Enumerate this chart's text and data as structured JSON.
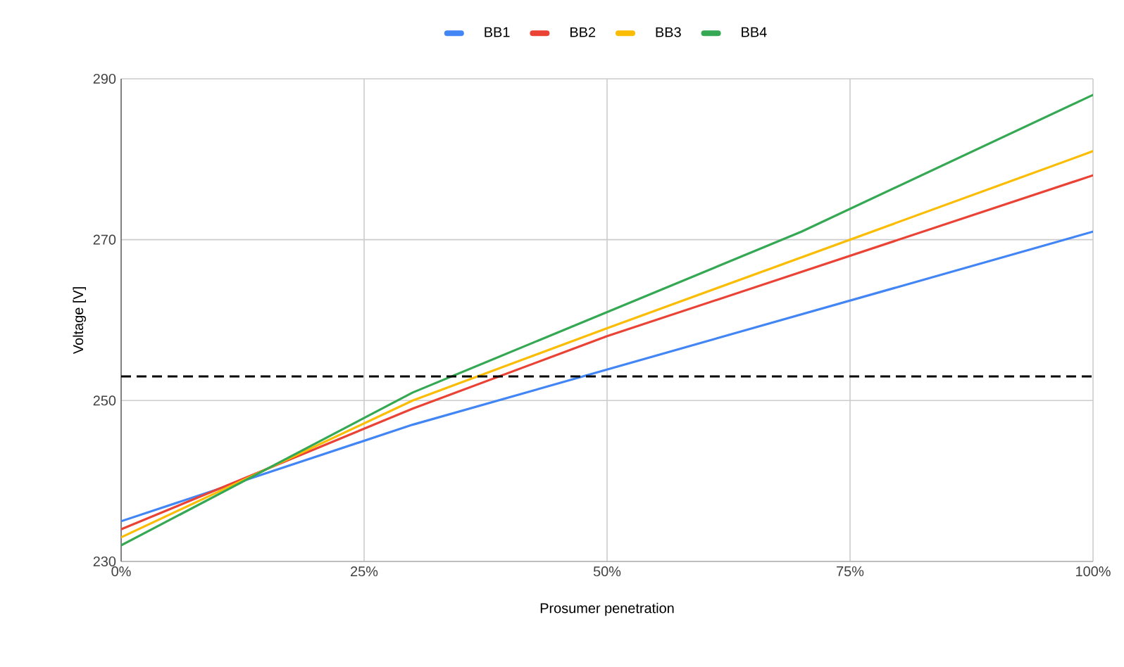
{
  "chart_data": {
    "type": "line",
    "xlabel": "Prosumer penetration",
    "ylabel": "Voltage [V]",
    "xlim": [
      0,
      100
    ],
    "ylim": [
      230,
      290
    ],
    "xticks": [
      {
        "value": 0,
        "label": "0%"
      },
      {
        "value": 25,
        "label": "25%"
      },
      {
        "value": 50,
        "label": "50%"
      },
      {
        "value": 75,
        "label": "75%"
      },
      {
        "value": 100,
        "label": "100%"
      }
    ],
    "yticks": [
      230,
      250,
      270,
      290
    ],
    "grid": true,
    "legend": "top",
    "series": [
      {
        "name": "BB1",
        "color": "#4285f4",
        "x": [
          0,
          30,
          100
        ],
        "values": [
          235,
          247,
          271
        ]
      },
      {
        "name": "BB2",
        "color": "#ea4335",
        "x": [
          0,
          30,
          50,
          100
        ],
        "values": [
          234,
          249,
          258,
          278
        ]
      },
      {
        "name": "BB3",
        "color": "#fbbc04",
        "x": [
          0,
          30,
          50,
          100
        ],
        "values": [
          233,
          250,
          259,
          281
        ]
      },
      {
        "name": "BB4",
        "color": "#34a853",
        "x": [
          0,
          30,
          70,
          100
        ],
        "values": [
          232,
          251,
          271,
          288
        ]
      }
    ],
    "ref_lines": [
      {
        "axis": "y",
        "value": 253,
        "color": "#000000",
        "line_style": "dashed"
      }
    ]
  }
}
